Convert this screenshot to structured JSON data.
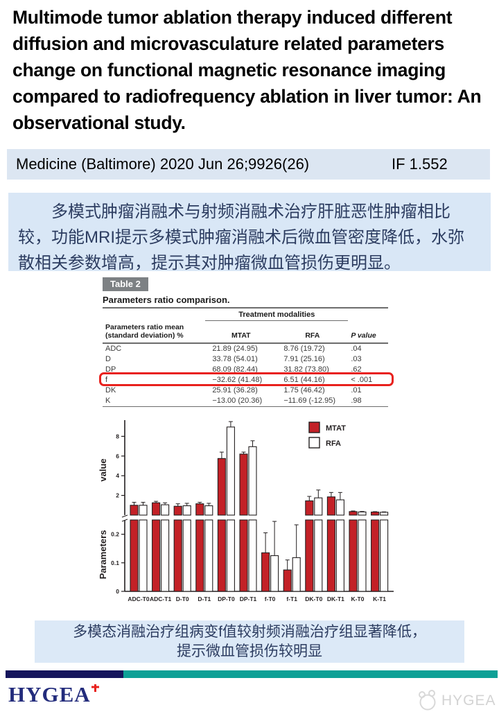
{
  "title": " Multimode tumor ablation therapy induced different diffusion and microvasculature related parameters change on functional magnetic resonance imaging compared to radiofrequency ablation in liver tumor: An observational study.",
  "journal": {
    "citation": "Medicine (Baltimore) 2020 Jun 26;9926(26)",
    "impact_factor": "IF 1.552"
  },
  "summary_cn": "多模式肿瘤消融术与射频消融术治疗肝脏恶性肿瘤相比较，功能MRI提示多模式肿瘤消融术后微血管密度降低，水弥散相关参数增高，提示其对肿瘤微血管损伤更明显。",
  "table": {
    "badge": "Table 2",
    "caption": "Parameters ratio comparison.",
    "group_header": "Treatment modalities",
    "col_headers": [
      "Parameters ratio mean (standard deviation) %",
      "MTAT",
      "RFA",
      "P value"
    ],
    "rows": [
      {
        "param": "ADC",
        "mtat": "21.89 (24.95)",
        "rfa": "8.76 (19.72)",
        "p": ".04",
        "highlight": false
      },
      {
        "param": "D",
        "mtat": "33.78 (54.01)",
        "rfa": "7.91 (25.16)",
        "p": ".03",
        "highlight": false
      },
      {
        "param": "DP",
        "mtat": "68.09 (82.44)",
        "rfa": "31.82 (73.80)",
        "p": ".62",
        "highlight": false
      },
      {
        "param": "f",
        "mtat": "−32.62 (41.48)",
        "rfa": "6.51 (44.16)",
        "p": "< .001",
        "highlight": true
      },
      {
        "param": "DK",
        "mtat": "25.91 (36.28)",
        "rfa": "1.75 (46.42)",
        "p": ".01",
        "highlight": false
      },
      {
        "param": "K",
        "mtat": "−13.00 (20.36)",
        "rfa": "−11.69 (-12.95)",
        "p": ".98",
        "highlight": false
      }
    ],
    "highlight_color": "#e8211d"
  },
  "chart_data": {
    "type": "bar",
    "title": "",
    "xlabel": "",
    "ylabel_top": "value",
    "ylabel_bottom": "Parameters",
    "grid": false,
    "legend_position": "top-right",
    "categories": [
      "ADC-T0",
      "ADC-T1",
      "D-T0",
      "D-T1",
      "DP-T0",
      "DP-T1",
      "f-T0",
      "f-T1",
      "DK-T0",
      "DK-T1",
      "K-T0",
      "K-T1"
    ],
    "series": [
      {
        "name": "MTAT",
        "color": "#c32127",
        "values": [
          1.0,
          1.25,
          0.9,
          1.15,
          5.75,
          6.2,
          0.135,
          0.075,
          1.45,
          1.85,
          0.36,
          0.31
        ],
        "errors": [
          0.3,
          0.15,
          0.25,
          0.15,
          0.65,
          0.2,
          0.07,
          0.035,
          0.45,
          0.45,
          0.06,
          0.04
        ]
      },
      {
        "name": "RFA",
        "color": "#ffffff",
        "values": [
          1.0,
          1.05,
          0.95,
          0.95,
          8.95,
          6.95,
          0.125,
          0.118,
          1.75,
          1.55,
          0.32,
          0.29
        ],
        "errors": [
          0.3,
          0.2,
          0.25,
          0.25,
          0.55,
          0.6,
          0.12,
          0.115,
          0.8,
          0.75,
          0.05,
          0.04
        ]
      }
    ],
    "axis_break": {
      "upper_ticks": [
        2,
        4,
        6,
        8
      ],
      "upper_max": 9.6,
      "lower_ticks": [
        0,
        0.1,
        0.2
      ],
      "lower_max": 0.25
    },
    "bar_outline": "#231f20"
  },
  "conclusion": {
    "line1": "多模态消融治疗组病变f值较射频消融治疗组显著降低，",
    "line2": "提示微血管损伤较明显"
  },
  "footer": {
    "brand": "HYGEA",
    "watermark": "HYGEA",
    "navy": "#15155c",
    "teal": "#0ea096"
  }
}
